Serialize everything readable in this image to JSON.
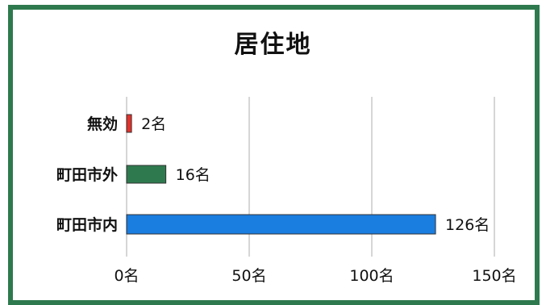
{
  "chart_data": {
    "type": "bar",
    "orientation": "horizontal",
    "title": "居住地",
    "categories": [
      "無効",
      "町田市外",
      "町田市内"
    ],
    "values": [
      2,
      16,
      126
    ],
    "value_labels": [
      "2名",
      "16名",
      "126名"
    ],
    "bar_colors": [
      "#e5302a",
      "#2e7a4e",
      "#1a7de0"
    ],
    "xlim": [
      0,
      150
    ],
    "x_ticks": [
      0,
      50,
      100,
      150
    ],
    "x_tick_labels": [
      "0名",
      "50名",
      "100名",
      "150名"
    ],
    "grid": true,
    "legend": "none"
  },
  "colors": {
    "frame": "#2e7a4e",
    "grid": "#c8c8c8",
    "text": "#111111"
  }
}
